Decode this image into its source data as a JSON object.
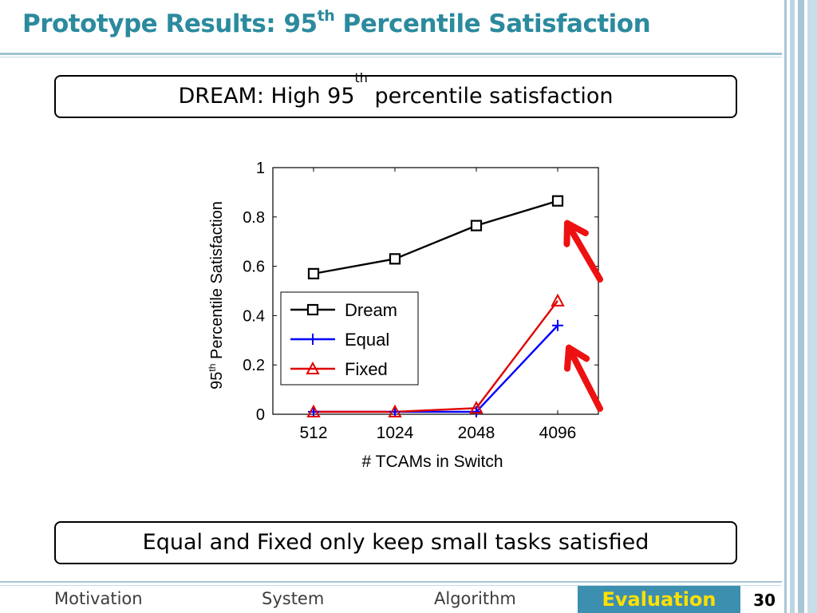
{
  "title": {
    "main": "Prototype Results: 95",
    "sup": "th",
    "rest": " Percentile Satisfaction"
  },
  "callout_top": {
    "pre": "DREAM: High 95",
    "sup": "th",
    "post": " percentile satisfaction"
  },
  "callout_bottom": {
    "text": "Equal and Fixed only keep small tasks satisfied"
  },
  "chart_data": {
    "type": "line",
    "categories": [
      "512",
      "1024",
      "2048",
      "4096"
    ],
    "series": [
      {
        "name": "Dream",
        "values": [
          0.57,
          0.63,
          0.765,
          0.865
        ],
        "color": "#000000",
        "marker": "square"
      },
      {
        "name": "Equal",
        "values": [
          0.01,
          0.01,
          0.01,
          0.36
        ],
        "color": "#0000ff",
        "marker": "plus"
      },
      {
        "name": "Fixed",
        "values": [
          0.01,
          0.01,
          0.025,
          0.46
        ],
        "color": "#e00000",
        "marker": "triangle"
      }
    ],
    "xlabel": "# TCAMs in Switch",
    "ylabel_pre": "95",
    "ylabel_sup": "th",
    "ylabel_post": " Percentile Satisfaction",
    "ylim": [
      0,
      1
    ],
    "yticks": [
      "0",
      "0.2",
      "0.4",
      "0.6",
      "0.8",
      "1"
    ],
    "grid": false,
    "legend_position": "center-left",
    "annotations": [
      "red arrow pointing to Dream at 4096",
      "red arrow pointing to Equal/Fixed at 4096"
    ]
  },
  "nav": {
    "motivation": "Motivation",
    "system": "System",
    "algorithm": "Algorithm",
    "evaluation": "Evaluation"
  },
  "page_number": "30",
  "colors": {
    "title": "#2b8a9e",
    "nav_active_bg": "#3d8fb0",
    "nav_active_text": "#ffe000",
    "arrow": "#ee1111"
  }
}
